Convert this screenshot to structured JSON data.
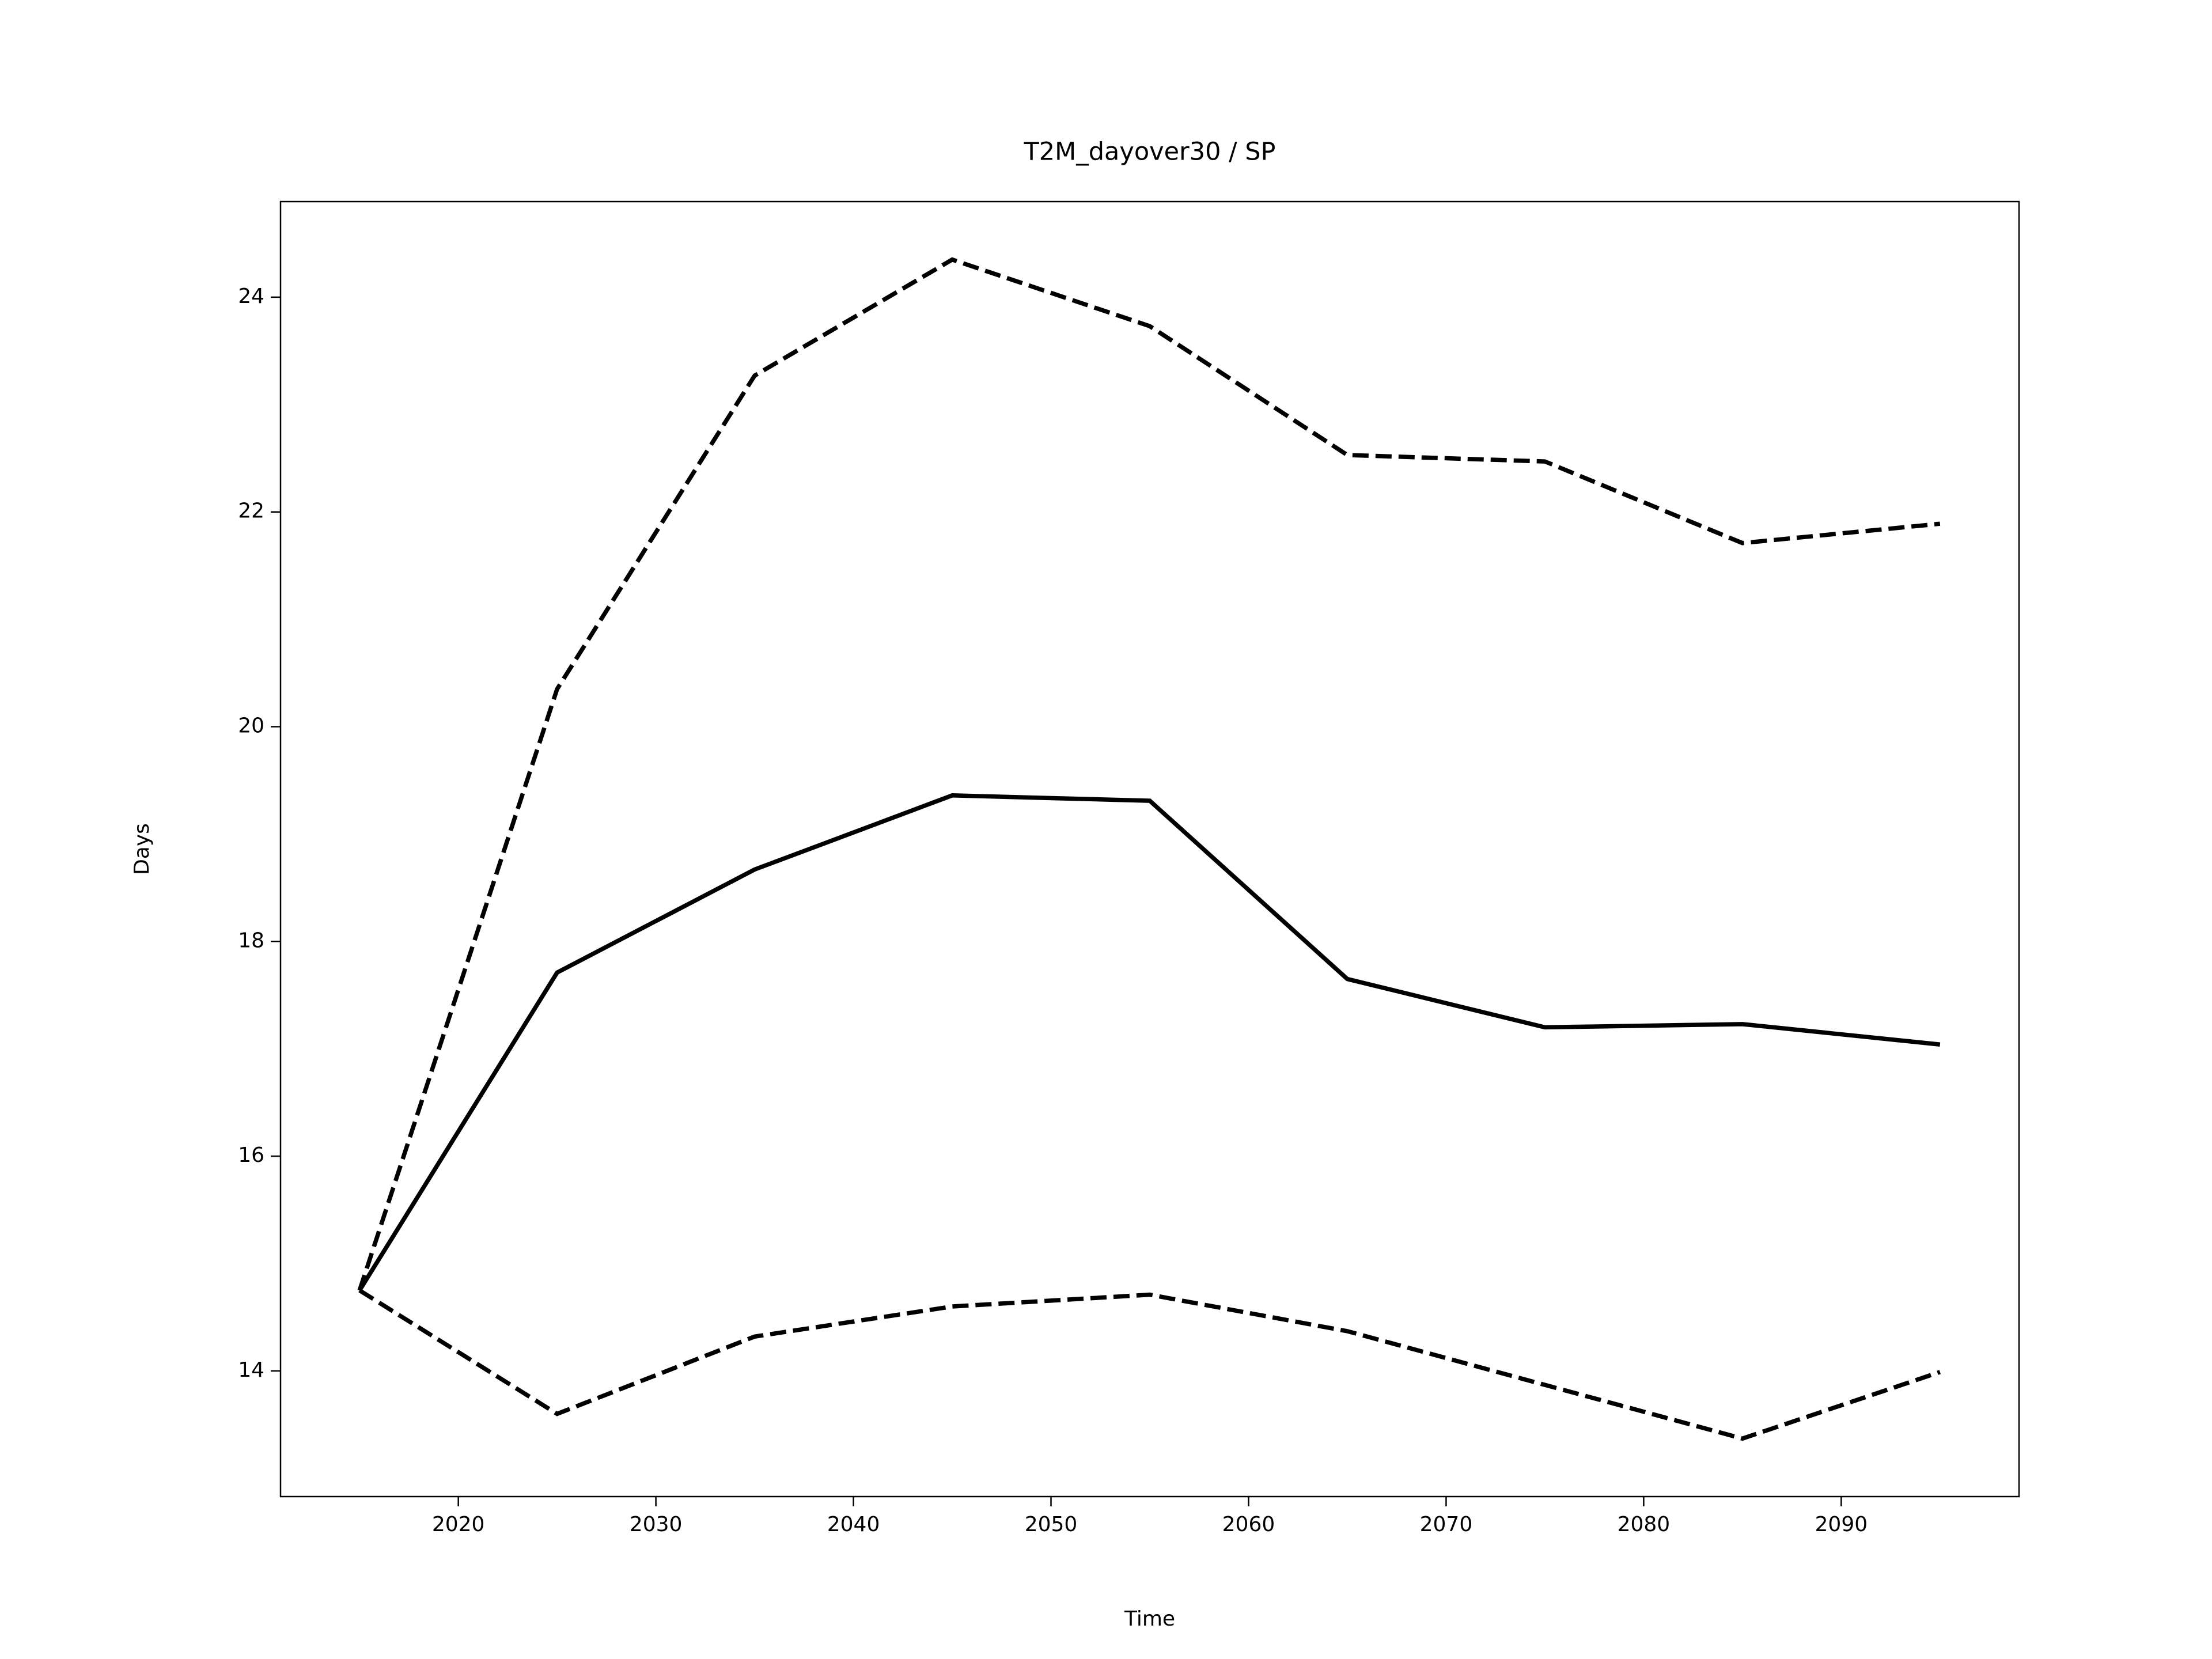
{
  "chart_data": {
    "type": "line",
    "title": "T2M_dayover30 / SP",
    "xlabel": "Time",
    "ylabel": "Days",
    "x": [
      2015,
      2025,
      2035,
      2045,
      2055,
      2065,
      2075,
      2085,
      2095
    ],
    "series": [
      {
        "color": "#000000",
        "linestyle": "solid",
        "values": [
          14.75,
          17.71,
          18.67,
          19.36,
          19.31,
          17.65,
          17.2,
          17.23,
          17.04
        ]
      },
      {
        "color": "#000000",
        "linestyle": "dashed",
        "values": [
          14.75,
          20.35,
          23.27,
          24.35,
          23.73,
          22.53,
          22.47,
          21.71,
          21.89
        ]
      },
      {
        "color": "#000000",
        "linestyle": "dashed",
        "values": [
          14.75,
          13.6,
          14.32,
          14.6,
          14.71,
          14.37,
          13.87,
          13.37,
          13.99
        ]
      }
    ],
    "xlim": [
      2011,
      2099
    ],
    "xticks": [
      2020,
      2030,
      2040,
      2050,
      2060,
      2070,
      2080,
      2090
    ],
    "ylim": [
      12.83,
      24.89
    ],
    "yticks": [
      14,
      16,
      18,
      20,
      22,
      24
    ],
    "grid": false
  }
}
